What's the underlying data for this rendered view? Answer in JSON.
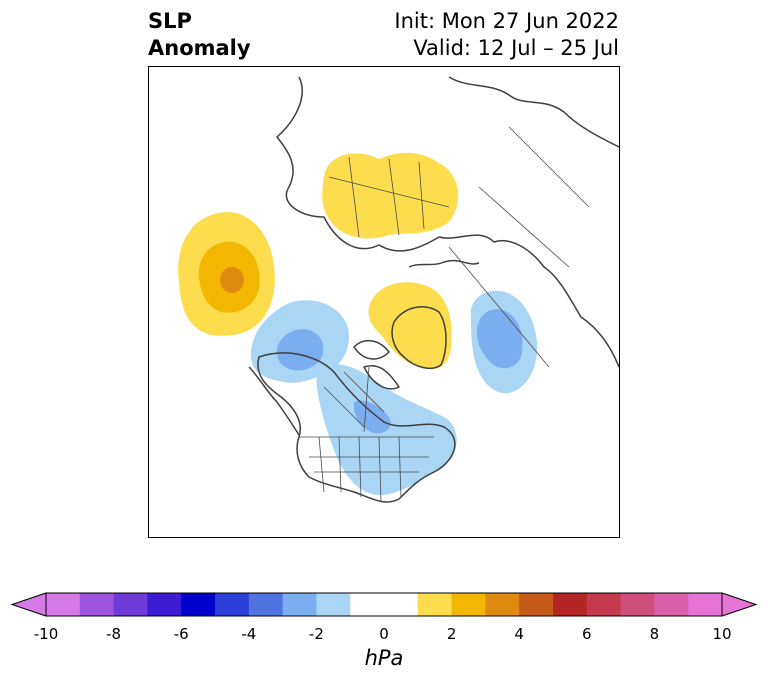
{
  "title": {
    "left_line1": "SLP",
    "left_line2": "Anomaly",
    "right_line1": "Init: Mon 27 Jun 2022",
    "right_line2": "Valid: 12 Jul – 25 Jul"
  },
  "map": {
    "projection": "north-polar-stereographic",
    "field": "sea level pressure anomaly",
    "anomaly_centers": [
      {
        "region": "NE Pacific / Gulf of Alaska",
        "sign": "positive",
        "peak_hpa": 5
      },
      {
        "region": "Northern Scandinavia / NW Russia",
        "sign": "positive",
        "peak_hpa": 2
      },
      {
        "region": "Greenland",
        "sign": "positive",
        "peak_hpa": 2
      },
      {
        "region": "Alaska / Canadian Arctic",
        "sign": "negative",
        "peak_hpa": -3
      },
      {
        "region": "Central Canada / Great Lakes",
        "sign": "negative",
        "peak_hpa": -2
      },
      {
        "region": "Sea of Okhotsk / NE Asia",
        "sign": "negative",
        "peak_hpa": -3
      }
    ]
  },
  "colorbar": {
    "unit": "hPa",
    "min": -10,
    "max": 10,
    "step": 1,
    "extend": "both",
    "tick_labels": [
      "-10",
      "-8",
      "-6",
      "-4",
      "-2",
      "0",
      "2",
      "4",
      "6",
      "8",
      "10"
    ],
    "colors": [
      "#d67ae8",
      "#9f55e0",
      "#6d3bd8",
      "#3b1cd2",
      "#0000cc",
      "#2a3ed8",
      "#4f74e0",
      "#7aaeef",
      "#aad6f6",
      "#ffffff",
      "#ffffff",
      "#fddd4e",
      "#f2b700",
      "#de8a10",
      "#c65a18",
      "#b42623",
      "#c4394f",
      "#cf507c",
      "#db5fa7",
      "#e673d6"
    ],
    "low_extend_color": "#d67ae8",
    "high_extend_color": "#e673d6"
  }
}
